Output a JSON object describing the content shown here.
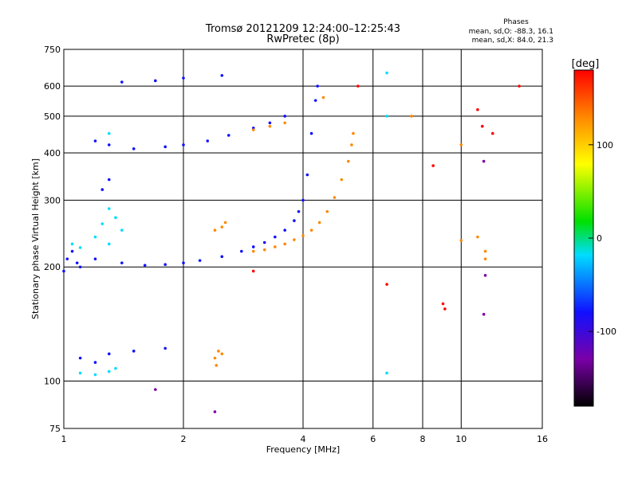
{
  "header": {
    "title": "Tromsø 20121209 12:24:00–12:25:43",
    "subtitle": "RwPretec (8p)",
    "stats_title": "Phases",
    "stats_o": "mean, sd,O: -88.3, 16.1",
    "stats_x": "mean, sd,X: 84.0, 21.3"
  },
  "chart_data": {
    "type": "scatter",
    "title": "Tromsø 20121209 12:24:00–12:25:43",
    "subtitle": "RwPretec (8p)",
    "xlabel": "Frequency [MHz]",
    "ylabel": "Stationary phase Virtual Height [km]",
    "x_scale": "log",
    "y_scale": "log",
    "xlim": [
      1,
      16
    ],
    "ylim": [
      75,
      750
    ],
    "x_ticks": [
      1,
      2,
      4,
      6,
      8,
      10,
      16
    ],
    "y_ticks": [
      75,
      100,
      200,
      300,
      400,
      500,
      600,
      750
    ],
    "x_gridlines": [
      2,
      4,
      6,
      8,
      10
    ],
    "y_gridlines": [
      100,
      200,
      300,
      400,
      500,
      600
    ],
    "colorbar": {
      "label": "[deg]",
      "range": [
        -180,
        180
      ],
      "ticks": [
        100,
        0,
        -100
      ],
      "colors": [
        "#000000",
        "#7a00a8",
        "#1010ff",
        "#00ddff",
        "#00e000",
        "#ffff00",
        "#ff8800",
        "#ff0000"
      ]
    },
    "series": [
      {
        "phase": -95,
        "points": [
          [
            1.0,
            195
          ],
          [
            1.02,
            210
          ],
          [
            1.05,
            220
          ],
          [
            1.08,
            205
          ],
          [
            1.1,
            200
          ],
          [
            1.2,
            210
          ],
          [
            1.4,
            205
          ],
          [
            1.6,
            202
          ],
          [
            1.8,
            203
          ],
          [
            2.0,
            205
          ],
          [
            2.2,
            208
          ],
          [
            2.5,
            213
          ],
          [
            2.8,
            220
          ],
          [
            3.0,
            226
          ],
          [
            3.2,
            232
          ],
          [
            3.4,
            240
          ],
          [
            3.6,
            250
          ],
          [
            3.8,
            265
          ],
          [
            3.9,
            280
          ],
          [
            4.0,
            300
          ],
          [
            4.1,
            350
          ],
          [
            4.2,
            450
          ],
          [
            4.3,
            550
          ],
          [
            4.35,
            600
          ],
          [
            1.5,
            410
          ],
          [
            1.8,
            415
          ],
          [
            2.0,
            420
          ],
          [
            2.3,
            430
          ],
          [
            2.6,
            445
          ],
          [
            3.0,
            465
          ],
          [
            3.3,
            480
          ],
          [
            3.6,
            500
          ],
          [
            1.4,
            615
          ],
          [
            1.7,
            620
          ],
          [
            2.0,
            630
          ],
          [
            2.5,
            640
          ],
          [
            1.2,
            430
          ],
          [
            1.3,
            420
          ],
          [
            1.1,
            115
          ],
          [
            1.2,
            112
          ],
          [
            1.3,
            118
          ],
          [
            1.5,
            120
          ],
          [
            1.8,
            122
          ],
          [
            1.3,
            340
          ],
          [
            1.25,
            320
          ]
        ]
      },
      {
        "phase": -30,
        "points": [
          [
            1.1,
            225
          ],
          [
            1.2,
            240
          ],
          [
            1.25,
            260
          ],
          [
            1.3,
            285
          ],
          [
            1.35,
            270
          ],
          [
            1.4,
            250
          ],
          [
            1.3,
            230
          ],
          [
            1.05,
            230
          ],
          [
            1.1,
            105
          ],
          [
            1.2,
            104
          ],
          [
            1.3,
            106
          ],
          [
            1.35,
            108
          ],
          [
            6.5,
            650
          ],
          [
            6.5,
            500
          ],
          [
            6.5,
            105
          ],
          [
            1.3,
            450
          ]
        ]
      },
      {
        "phase": 105,
        "points": [
          [
            2.4,
            250
          ],
          [
            2.5,
            255
          ],
          [
            2.55,
            262
          ],
          [
            3.0,
            220
          ],
          [
            3.2,
            222
          ],
          [
            3.4,
            226
          ],
          [
            3.6,
            230
          ],
          [
            3.8,
            236
          ],
          [
            4.0,
            242
          ],
          [
            4.2,
            250
          ],
          [
            4.4,
            262
          ],
          [
            4.6,
            280
          ],
          [
            4.8,
            305
          ],
          [
            5.0,
            340
          ],
          [
            5.2,
            380
          ],
          [
            5.3,
            420
          ],
          [
            5.35,
            450
          ],
          [
            3.0,
            460
          ],
          [
            3.3,
            470
          ],
          [
            3.6,
            480
          ],
          [
            2.4,
            115
          ],
          [
            2.45,
            120
          ],
          [
            2.5,
            118
          ],
          [
            2.42,
            110
          ],
          [
            4.5,
            560
          ],
          [
            7.5,
            500
          ],
          [
            10.0,
            420
          ],
          [
            11.5,
            210
          ],
          [
            11.5,
            220
          ],
          [
            11.0,
            240
          ],
          [
            10.0,
            235
          ]
        ]
      },
      {
        "phase": 175,
        "points": [
          [
            5.5,
            600
          ],
          [
            9.0,
            160
          ],
          [
            9.1,
            155
          ],
          [
            6.5,
            180
          ],
          [
            8.5,
            370
          ],
          [
            11.0,
            520
          ],
          [
            11.3,
            470
          ],
          [
            12.0,
            450
          ],
          [
            14.0,
            600
          ],
          [
            3.0,
            195
          ]
        ]
      },
      {
        "phase": -140,
        "points": [
          [
            1.7,
            95
          ],
          [
            2.4,
            83
          ],
          [
            11.5,
            190
          ],
          [
            11.4,
            150
          ],
          [
            11.4,
            380
          ]
        ]
      }
    ]
  }
}
